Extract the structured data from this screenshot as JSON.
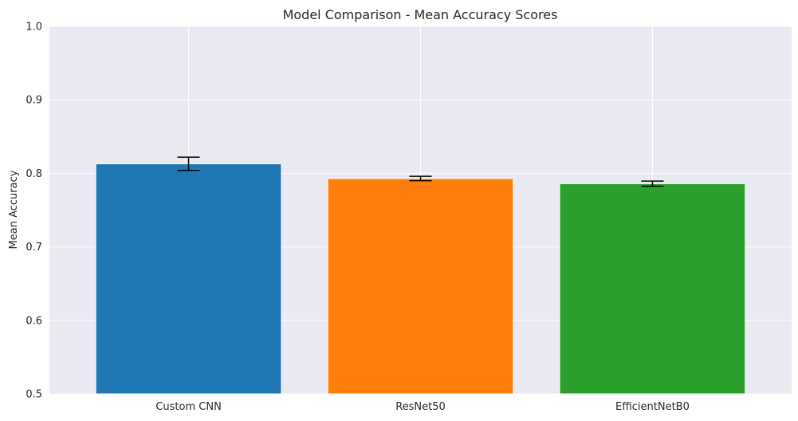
{
  "chart_data": {
    "type": "bar",
    "title": "Model Comparison - Mean Accuracy Scores",
    "xlabel": "",
    "ylabel": "Mean Accuracy",
    "ylim": [
      0.5,
      1.0
    ],
    "yticks": [
      "0.5",
      "0.6",
      "0.7",
      "0.8",
      "0.9",
      "1.0"
    ],
    "ytick_values": [
      0.5,
      0.6,
      0.7,
      0.8,
      0.9,
      1.0
    ],
    "categories": [
      "Custom CNN",
      "ResNet50",
      "EfficientNetB0"
    ],
    "values": [
      0.813,
      0.793,
      0.786
    ],
    "errors": [
      0.009,
      0.003,
      0.0035
    ],
    "colors": [
      "#1f77b4",
      "#ff7f0e",
      "#2ca02c"
    ],
    "grid": true,
    "background": "#eaeaf2"
  }
}
